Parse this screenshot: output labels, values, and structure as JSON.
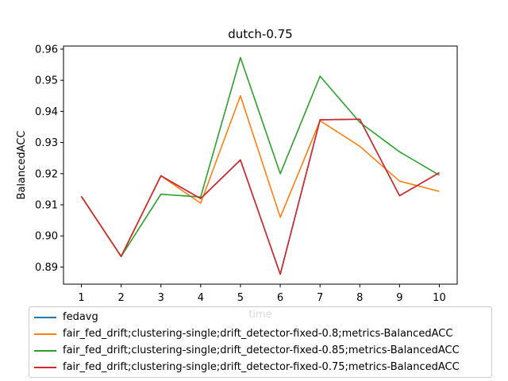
{
  "chart_data": {
    "type": "line",
    "title": "dutch-0.75",
    "xlabel": "time",
    "ylabel": "BalancedACC",
    "x": [
      1,
      2,
      3,
      4,
      5,
      6,
      7,
      8,
      9,
      10
    ],
    "xticks": [
      "1",
      "2",
      "3",
      "4",
      "5",
      "6",
      "7",
      "8",
      "9",
      "10"
    ],
    "yticks": [
      "0.89",
      "0.90",
      "0.91",
      "0.92",
      "0.93",
      "0.94",
      "0.95",
      "0.96"
    ],
    "xlim": [
      0.55,
      10.45
    ],
    "ylim": [
      0.8845,
      0.961
    ],
    "grid": false,
    "legend_position": "bottom",
    "series": [
      {
        "name": "fedavg",
        "color": "#1f77b4",
        "values": [
          0.9127,
          0.8934,
          0.9193,
          0.912,
          0.9244,
          0.8877,
          0.9373,
          0.9375,
          0.9129,
          0.9203
        ]
      },
      {
        "name": "fair_fed_drift;clustering-single;drift_detector-fixed-0.8;metrics-BalancedACC",
        "color": "#ff7f0e",
        "values": [
          0.9127,
          0.8934,
          0.9193,
          0.9105,
          0.945,
          0.906,
          0.937,
          0.9288,
          0.9176,
          0.9143
        ]
      },
      {
        "name": "fair_fed_drift;clustering-single;drift_detector-fixed-0.85;metrics-BalancedACC",
        "color": "#2ca02c",
        "values": [
          0.9127,
          0.8934,
          0.9134,
          0.9125,
          0.9573,
          0.92,
          0.9513,
          0.9365,
          0.927,
          0.9195
        ]
      },
      {
        "name": "fair_fed_drift;clustering-single;drift_detector-fixed-0.75;metrics-BalancedACC",
        "color": "#d62728",
        "values": [
          0.9127,
          0.8934,
          0.9193,
          0.912,
          0.9244,
          0.8877,
          0.9373,
          0.9375,
          0.9129,
          0.9203
        ]
      }
    ]
  }
}
